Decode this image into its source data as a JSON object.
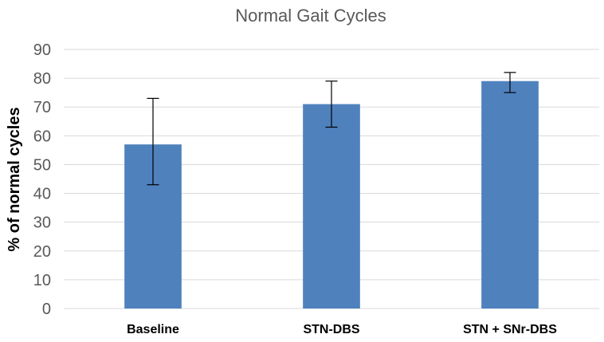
{
  "chart_data": {
    "type": "bar",
    "title": "Normal Gait Cycles",
    "xlabel": "",
    "ylabel": "% of normal cycles",
    "categories": [
      "Baseline",
      "STN-DBS",
      "STN + SNr-DBS"
    ],
    "values": [
      57,
      71,
      79
    ],
    "error_upper": [
      73,
      79,
      82
    ],
    "error_lower": [
      43,
      63,
      75
    ],
    "ylim": [
      0,
      90
    ],
    "yticks": [
      0,
      10,
      20,
      30,
      40,
      50,
      60,
      70,
      80,
      90
    ],
    "grid": true,
    "legend": "none",
    "bar_color": "#4f81bd"
  }
}
